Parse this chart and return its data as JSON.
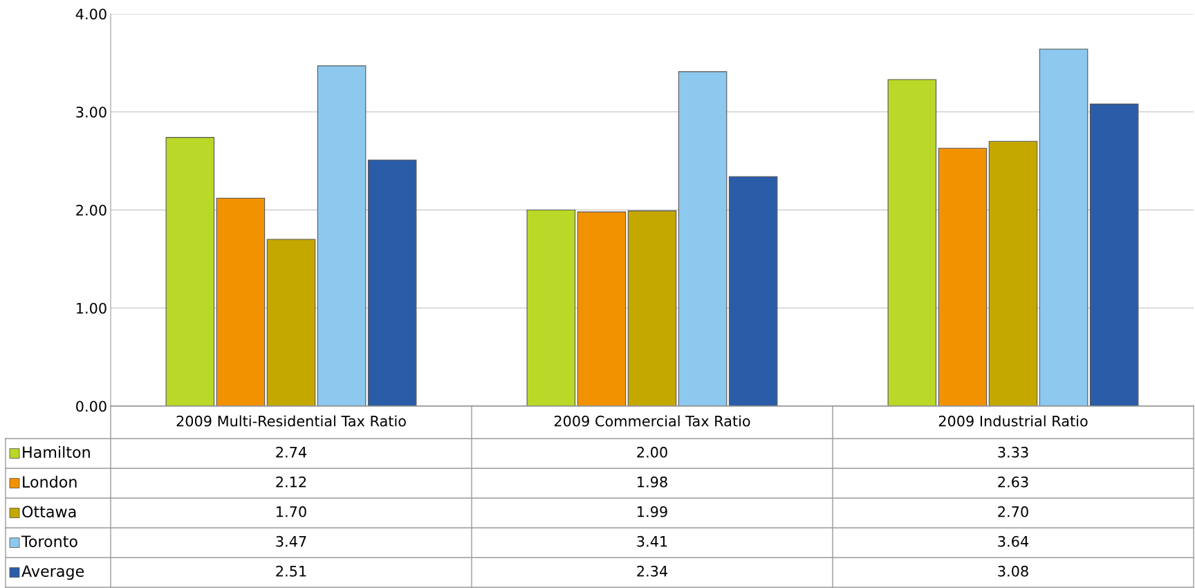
{
  "chart_data": {
    "type": "bar",
    "categories": [
      "2009 Multi-Residential Tax Ratio",
      "2009 Commercial Tax Ratio",
      "2009 Industrial Ratio"
    ],
    "series": [
      {
        "name": "Hamilton",
        "color": "#b9d827",
        "values": [
          2.74,
          2.0,
          3.33
        ],
        "value_labels": [
          "2.74",
          "2.00",
          "3.33"
        ]
      },
      {
        "name": "London",
        "color": "#f39200",
        "values": [
          2.12,
          1.98,
          2.63
        ],
        "value_labels": [
          "2.12",
          "1.98",
          "2.63"
        ]
      },
      {
        "name": "Ottawa",
        "color": "#c4a800",
        "values": [
          1.7,
          1.99,
          2.7
        ],
        "value_labels": [
          "1.70",
          "1.99",
          "2.70"
        ]
      },
      {
        "name": "Toronto",
        "color": "#8dc8ee",
        "values": [
          3.47,
          3.41,
          3.64
        ],
        "value_labels": [
          "3.47",
          "3.41",
          "3.64"
        ]
      },
      {
        "name": "Average",
        "color": "#2b5ca8",
        "values": [
          2.51,
          2.34,
          3.08
        ],
        "value_labels": [
          "2.51",
          "2.34",
          "3.08"
        ]
      }
    ],
    "ylim": [
      0,
      4
    ],
    "yticks": [
      {
        "value": 0,
        "label": "0.00"
      },
      {
        "value": 1,
        "label": "1.00"
      },
      {
        "value": 2,
        "label": "2.00"
      },
      {
        "value": 3,
        "label": "3.00"
      },
      {
        "value": 4,
        "label": "4.00"
      }
    ],
    "grid": "y",
    "legend": "bottom"
  }
}
